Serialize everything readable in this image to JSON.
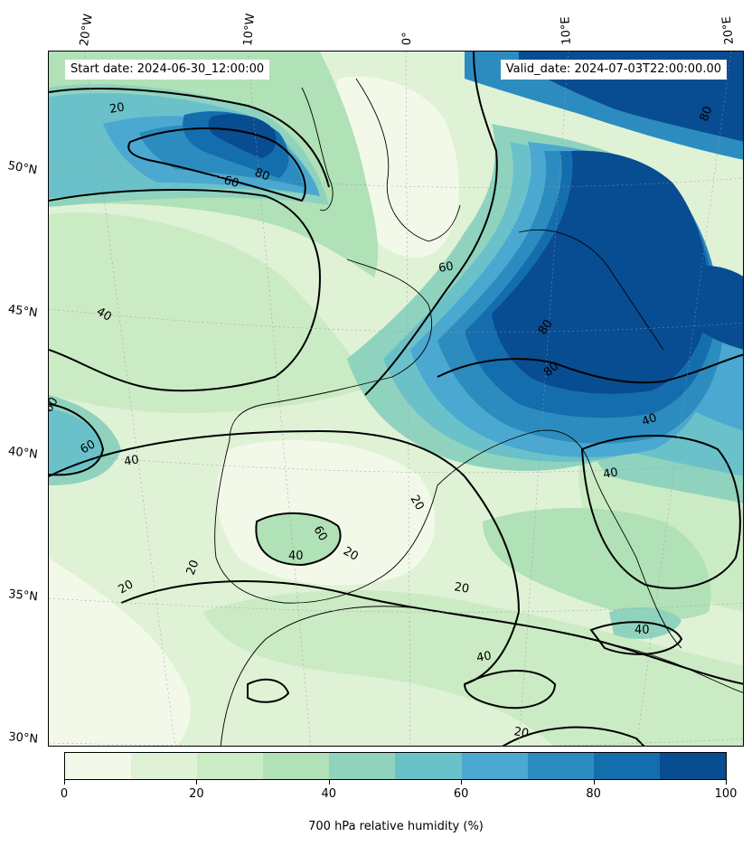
{
  "map": {
    "header": {
      "start_date": "Start date: 2024-06-30_12:00:00",
      "valid_date": "Valid_date: 2024-07-03T22:00:00.00"
    },
    "lon_labels": [
      "20°W",
      "10°W",
      "0°",
      "10°E",
      "20°E"
    ],
    "lat_labels": [
      "50°N",
      "45°N",
      "40°N",
      "35°N",
      "30°N"
    ],
    "contour_labels": [
      "20",
      "60",
      "80",
      "60",
      "40",
      "60",
      "80",
      "80",
      "80",
      "60",
      "40",
      "40",
      "20",
      "60",
      "40",
      "20",
      "20",
      "20",
      "20",
      "40",
      "40",
      "20",
      "40"
    ],
    "colorbar": {
      "title": "700 hPa relative humidity (%)",
      "tick_labels": [
        "0",
        "20",
        "40",
        "60",
        "80",
        "100"
      ],
      "colors": [
        "#f3f9e9",
        "#dff2d6",
        "#cbebc4",
        "#b1e1b6",
        "#8fd3bf",
        "#6bc1c9",
        "#4aa8d1",
        "#2c8cbf",
        "#146eae",
        "#084c92"
      ]
    }
  }
}
